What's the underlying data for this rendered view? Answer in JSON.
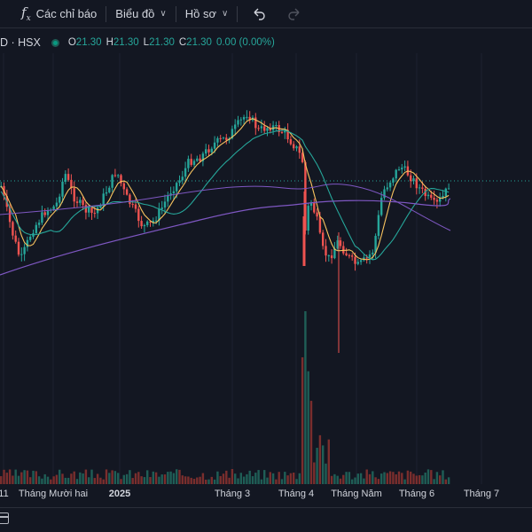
{
  "toolbar": {
    "indicators_label": "Các chỉ báo",
    "chart_label": "Biểu đồ",
    "profile_label": "Hồ sơ",
    "indicators_icon": "fx-icon",
    "undo_icon": "undo-icon",
    "redo_icon": "redo-icon"
  },
  "legend": {
    "symbol": "D · HSX",
    "open_key": "O",
    "open_val": "21.30",
    "high_key": "H",
    "high_val": "21.30",
    "low_key": "L",
    "low_val": "21.30",
    "close_key": "C",
    "close_val": "21.30",
    "change": "0.00 (0.00%)",
    "status_color": "#089981"
  },
  "xaxis": {
    "labels": [
      "11",
      "Tháng Mười hai",
      "2025",
      "Tháng 3",
      "Tháng 4",
      "Tháng Năm",
      "Tháng 6",
      "Tháng 7",
      ""
    ]
  },
  "bottom": {
    "calendar_icon": "calendar-icon"
  },
  "colors": {
    "background": "#131722",
    "up": "#26a69a",
    "down": "#ef5350",
    "ma_fast": "#f7c35f",
    "ma_mid": "#26a69a",
    "ma_slow": "#7e57c2"
  },
  "chart_data": {
    "type": "candlestick",
    "last_price": 21.3,
    "x_ticks": [
      "11",
      "Tháng Mười hai",
      "2025",
      "Tháng 3",
      "Tháng 4",
      "Tháng Năm",
      "Tháng 6",
      "Tháng 7"
    ],
    "series": [
      {
        "name": "",
        "kind": "ohlc"
      },
      {
        "name": "",
        "kind": "moving-average",
        "color": "#f7c35f"
      },
      {
        "name": "",
        "kind": "moving-average",
        "color": "#26a69a"
      },
      {
        "name": "",
        "kind": "moving-average",
        "color": "#7e57c2"
      },
      {
        "name": "",
        "kind": "volume"
      }
    ]
  }
}
